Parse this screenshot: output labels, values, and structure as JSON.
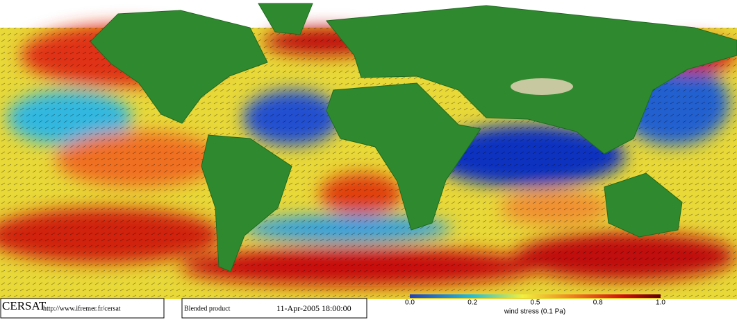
{
  "footer": {
    "logo": "CERSAT",
    "url": "http://www.ifremer.fr/cersat",
    "product": "Blended product",
    "timestamp": "11-Apr-2005 18:00:00"
  },
  "colorbar": {
    "ticks": [
      "0.0",
      "0.2",
      "0.5",
      "0.8",
      "1.0"
    ],
    "label": "wind stress (0.1 Pa)"
  }
}
